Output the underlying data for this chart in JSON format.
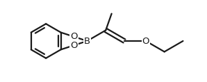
{
  "bg_color": "#ffffff",
  "line_color": "#1a1a1a",
  "line_width": 1.6,
  "figsize": [
    2.98,
    1.18
  ],
  "dpi": 100,
  "xlim": [
    0,
    9.5
  ],
  "ylim": [
    0,
    4.2
  ],
  "label_fontsize": 9.5,
  "label_bg": "#ffffff"
}
